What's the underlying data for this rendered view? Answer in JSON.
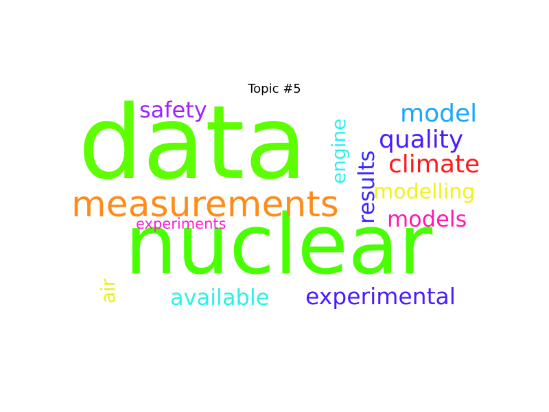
{
  "title": "Topic #5",
  "words": {
    "data": {
      "text": "data",
      "color": "#5dff00"
    },
    "nuclear": {
      "text": "nuclear",
      "color": "#47ff00"
    },
    "measurements": {
      "text": "measurements",
      "color": "#ff8c1a"
    },
    "safety": {
      "text": "safety",
      "color": "#9f22ff"
    },
    "engine": {
      "text": "engine",
      "color": "#2cf2ee"
    },
    "results": {
      "text": "results",
      "color": "#3a28ff"
    },
    "model": {
      "text": "model",
      "color": "#1aa7ff"
    },
    "quality": {
      "text": "quality",
      "color": "#4a1cff"
    },
    "climate": {
      "text": "climate",
      "color": "#ff1a1a"
    },
    "modelling": {
      "text": "modelling",
      "color": "#f2f21a"
    },
    "models": {
      "text": "models",
      "color": "#ff1ab0"
    },
    "experiments": {
      "text": "experiments",
      "color": "#ff1ad6"
    },
    "air": {
      "text": "air",
      "color": "#e6f21a"
    },
    "available": {
      "text": "available",
      "color": "#2af2e6"
    },
    "experimental": {
      "text": "experimental",
      "color": "#4a1cff"
    }
  }
}
